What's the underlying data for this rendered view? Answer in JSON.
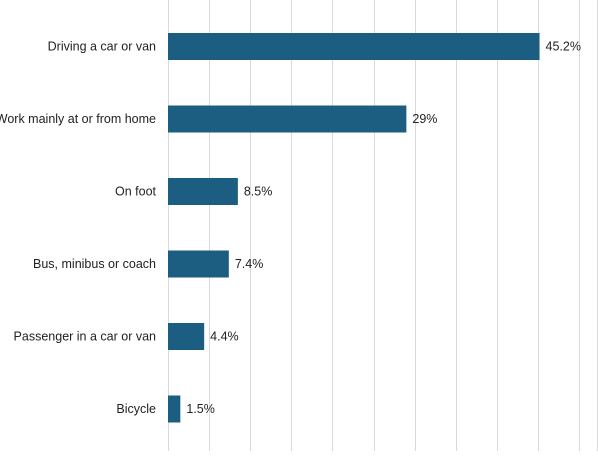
{
  "chart_data": {
    "type": "bar",
    "orientation": "horizontal",
    "categories": [
      "Driving a car or van",
      "Work mainly at or from home",
      "On foot",
      "Bus, minibus or coach",
      "Passenger in a car or van",
      "Bicycle"
    ],
    "values": [
      45.2,
      29,
      8.5,
      7.4,
      4.4,
      1.5
    ],
    "data_labels": [
      "45.2%",
      "29%",
      "8.5%",
      "7.4%",
      "4.4%",
      "1.5%"
    ],
    "title": "",
    "xlabel": "",
    "ylabel": "",
    "xlim": [
      0,
      50
    ],
    "grid": true,
    "legend": "none",
    "bar_color": "#1b5e82",
    "grid_color": "#d9d9d9"
  }
}
